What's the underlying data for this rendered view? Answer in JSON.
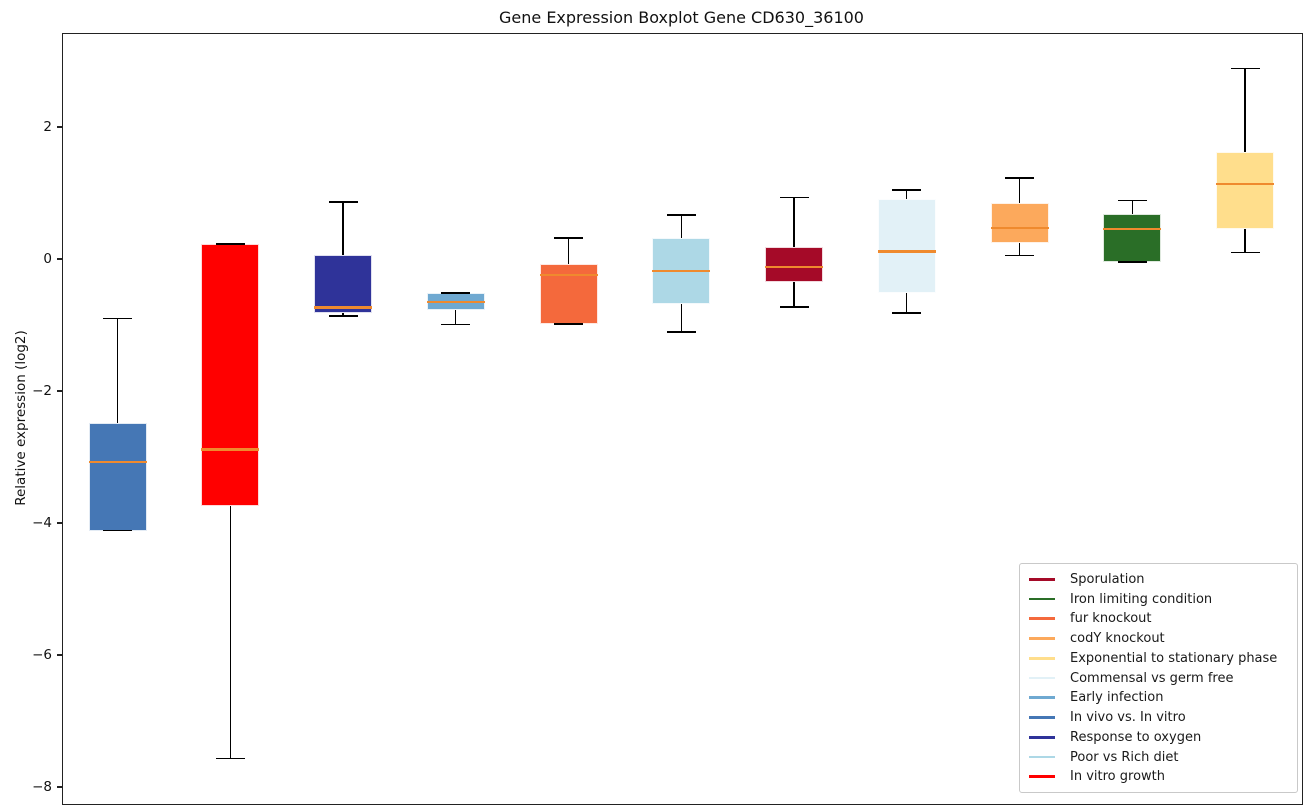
{
  "title": "Gene Expression Boxplot Gene CD630_36100",
  "chart_data": {
    "type": "boxplot",
    "title": "Gene Expression Boxplot Gene CD630_36100",
    "xlabel": "",
    "ylabel": "Relative expression (log2)",
    "ylim": [
      -8.2,
      3.4
    ],
    "yticks": [
      2,
      0,
      -2,
      -4,
      -6,
      -8
    ],
    "grid": false,
    "legend_position": "lower right",
    "median_color": "#EF8A2E",
    "whisker_color": "#000000",
    "boxes": [
      {
        "condition": "In vivo vs. In vitro",
        "color": "#4577B5",
        "whisker_low": -4.1,
        "q1": -4.1,
        "median": -3.06,
        "q3": -2.47,
        "whisker_high": -0.89
      },
      {
        "condition": "In vitro growth",
        "color": "#FF0000",
        "whisker_low": -7.55,
        "q1": -3.73,
        "median": -2.87,
        "q3": 0.24,
        "whisker_high": 0.24
      },
      {
        "condition": "Response to oxygen",
        "color": "#2F3399",
        "whisker_low": -0.85,
        "q1": -0.81,
        "median": -0.72,
        "q3": 0.08,
        "whisker_high": 0.88
      },
      {
        "condition": "Early infection",
        "color": "#6FA9D1",
        "whisker_low": -0.98,
        "q1": -0.75,
        "median": -0.64,
        "q3": -0.5,
        "whisker_high": -0.5
      },
      {
        "condition": "fur knockout",
        "color": "#F4693C",
        "whisker_low": -0.97,
        "q1": -0.97,
        "median": -0.23,
        "q3": -0.06,
        "whisker_high": 0.33
      },
      {
        "condition": "Poor vs Rich diet",
        "color": "#ADD8E6",
        "whisker_low": -1.09,
        "q1": -0.67,
        "median": -0.17,
        "q3": 0.34,
        "whisker_high": 0.68
      },
      {
        "condition": "Sporulation",
        "color": "#A50A28",
        "whisker_low": -0.71,
        "q1": -0.34,
        "median": -0.11,
        "q3": 0.2,
        "whisker_high": 0.95
      },
      {
        "condition": "Commensal vs germ free",
        "color": "#E2F1F7",
        "whisker_low": -0.8,
        "q1": -0.5,
        "median": 0.13,
        "q3": 0.93,
        "whisker_high": 1.06
      },
      {
        "condition": "codY knockout",
        "color": "#FCA95C",
        "whisker_low": 0.07,
        "q1": 0.25,
        "median": 0.48,
        "q3": 0.86,
        "whisker_high": 1.24
      },
      {
        "condition": "Iron limiting condition",
        "color": "#2A6E27",
        "whisker_low": -0.03,
        "q1": -0.03,
        "median": 0.47,
        "q3": 0.7,
        "whisker_high": 0.9
      },
      {
        "condition": "Exponential to stationary phase",
        "color": "#FFDE8C",
        "whisker_low": 0.11,
        "q1": 0.47,
        "median": 1.15,
        "q3": 1.64,
        "whisker_high": 2.9
      }
    ],
    "legend": {
      "entries": [
        {
          "label": "Sporulation",
          "color": "#A50A28"
        },
        {
          "label": "Iron limiting condition",
          "color": "#2A6E27"
        },
        {
          "label": "fur knockout",
          "color": "#F4693C"
        },
        {
          "label": "codY knockout",
          "color": "#FCA95C"
        },
        {
          "label": "Exponential to stationary phase",
          "color": "#FFDE8C"
        },
        {
          "label": "Commensal vs germ free",
          "color": "#E2F1F7"
        },
        {
          "label": "Early infection",
          "color": "#6FA9D1"
        },
        {
          "label": "In vivo vs. In vitro",
          "color": "#4577B5"
        },
        {
          "label": "Response to oxygen",
          "color": "#2F3399"
        },
        {
          "label": "Poor vs Rich diet",
          "color": "#ADD8E6"
        },
        {
          "label": "In vitro growth",
          "color": "#FF0000"
        }
      ]
    }
  }
}
